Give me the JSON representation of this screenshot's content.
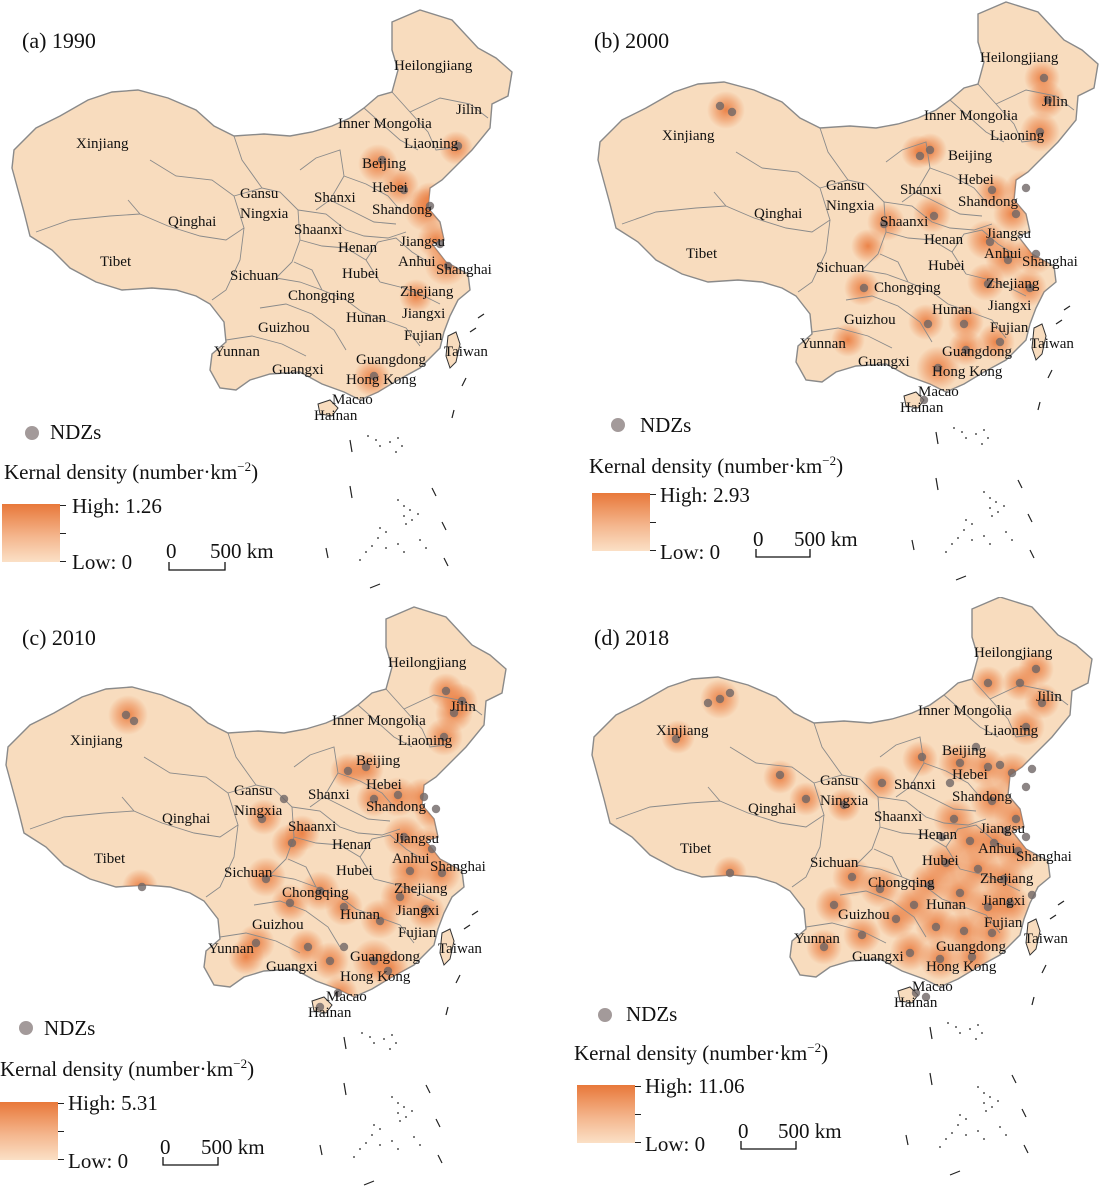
{
  "figure": {
    "legend_ndz_label": "NDZs",
    "legend_title": "Kernal density (number·km",
    "legend_title_sup": "−2",
    "legend_title_close": ")",
    "low_label": "Low: 0",
    "scale_zero": "0",
    "scale_label": "500 km"
  },
  "colors": {
    "land": "#f8dcbe",
    "border": "#8a8a8a",
    "heat": "#ea7a3c",
    "point": "#6f6666",
    "point_legend": "#a39a9a"
  },
  "provinces": [
    "Heilongjiang",
    "Jilin",
    "Liaoning",
    "Inner Mongolia",
    "Xinjiang",
    "Beijing",
    "Hebei",
    "Gansu",
    "Ningxia",
    "Shanxi",
    "Shandong",
    "Qinghai",
    "Shaanxi",
    "Henan",
    "Jiangsu",
    "Tibet",
    "Anhui",
    "Shanghai",
    "Sichuan",
    "Hubei",
    "Chongqing",
    "Zhejiang",
    "Jiangxi",
    "Hunan",
    "Guizhou",
    "Fujian",
    "Yunnan",
    "Guangdong",
    "Taiwan",
    "Guangxi",
    "Hong Kong",
    "Macao",
    "Hainan"
  ],
  "panels": [
    {
      "id": "a",
      "label": "(a) 1990",
      "high_label": "High: 1.26"
    },
    {
      "id": "b",
      "label": "(b) 2000",
      "high_label": "High: 2.93"
    },
    {
      "id": "c",
      "label": "(c) 2010",
      "high_label": "High: 5.31"
    },
    {
      "id": "d",
      "label": "(d) 2018",
      "high_label": "High: 11.06"
    }
  ]
}
